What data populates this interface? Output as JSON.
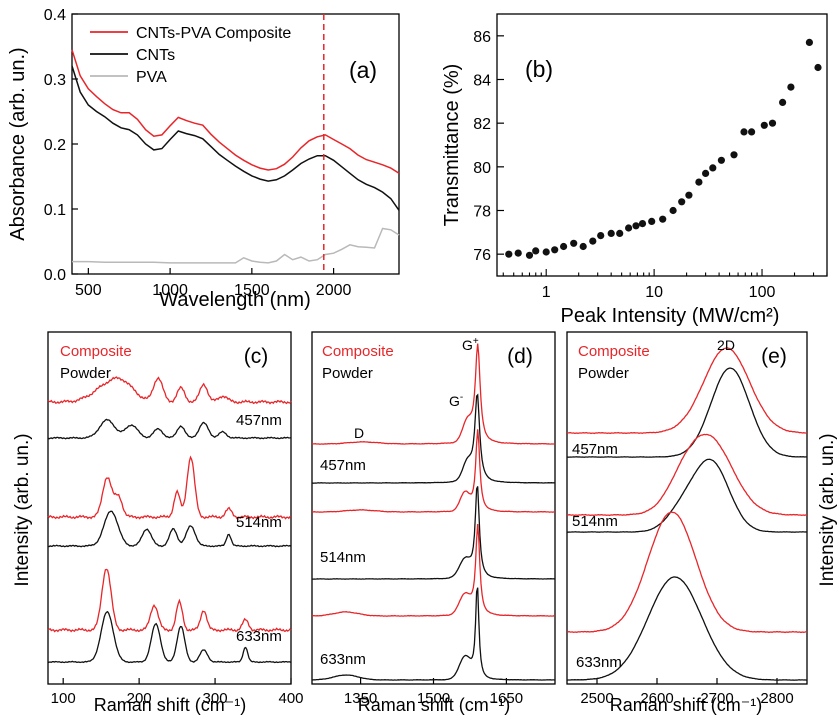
{
  "colors": {
    "composite": "#e8262a",
    "powder": "#111111",
    "pva": "#b9b9b9",
    "marker": "#111111"
  },
  "chart_data": [
    {
      "type": "line",
      "panel_label": "(a)",
      "xlabel": "Wavelength (nm)",
      "ylabel": "Absorbance (arb. un.)",
      "xlim": [
        400,
        2400
      ],
      "ylim": [
        0,
        0.4
      ],
      "x_ticks": [
        500,
        1000,
        1500,
        2000
      ],
      "y_ticks": [
        0.0,
        0.1,
        0.2,
        0.3,
        0.4
      ],
      "y_tick_labels": [
        "0.0",
        "0.1",
        "0.2",
        "0.3",
        "0.4"
      ],
      "legend_position": "top-left",
      "marker_line_x": 1940,
      "series": [
        {
          "name": "CNTs-PVA Composite",
          "color_key": "composite",
          "x": [
            400,
            450,
            500,
            550,
            600,
            650,
            700,
            750,
            800,
            850,
            900,
            950,
            1000,
            1050,
            1100,
            1150,
            1200,
            1250,
            1300,
            1350,
            1400,
            1450,
            1500,
            1550,
            1600,
            1650,
            1700,
            1750,
            1800,
            1850,
            1900,
            1950,
            2000,
            2050,
            2100,
            2150,
            2200,
            2250,
            2300,
            2350,
            2400
          ],
          "y": [
            0.345,
            0.305,
            0.285,
            0.273,
            0.262,
            0.253,
            0.248,
            0.248,
            0.238,
            0.222,
            0.212,
            0.214,
            0.228,
            0.241,
            0.236,
            0.232,
            0.229,
            0.215,
            0.203,
            0.193,
            0.183,
            0.175,
            0.168,
            0.163,
            0.16,
            0.162,
            0.169,
            0.18,
            0.194,
            0.205,
            0.211,
            0.214,
            0.207,
            0.2,
            0.193,
            0.183,
            0.176,
            0.172,
            0.168,
            0.163,
            0.155
          ]
        },
        {
          "name": "CNTs",
          "color_key": "powder",
          "x": [
            400,
            450,
            500,
            550,
            600,
            650,
            700,
            750,
            800,
            850,
            900,
            950,
            1000,
            1050,
            1100,
            1150,
            1200,
            1250,
            1300,
            1350,
            1400,
            1450,
            1500,
            1550,
            1600,
            1650,
            1700,
            1750,
            1800,
            1850,
            1900,
            1950,
            2000,
            2050,
            2100,
            2150,
            2200,
            2250,
            2300,
            2350,
            2400
          ],
          "y": [
            0.32,
            0.28,
            0.26,
            0.25,
            0.242,
            0.232,
            0.225,
            0.222,
            0.214,
            0.2,
            0.191,
            0.193,
            0.207,
            0.22,
            0.216,
            0.213,
            0.208,
            0.196,
            0.184,
            0.175,
            0.166,
            0.158,
            0.151,
            0.146,
            0.143,
            0.145,
            0.151,
            0.16,
            0.17,
            0.177,
            0.182,
            0.182,
            0.175,
            0.165,
            0.155,
            0.145,
            0.138,
            0.133,
            0.126,
            0.116,
            0.098
          ]
        },
        {
          "name": "PVA",
          "color_key": "pva",
          "x": [
            400,
            500,
            600,
            700,
            800,
            900,
            1000,
            1100,
            1200,
            1300,
            1400,
            1450,
            1500,
            1550,
            1600,
            1650,
            1700,
            1750,
            1800,
            1850,
            1900,
            1950,
            2000,
            2050,
            2100,
            2150,
            2200,
            2250,
            2300,
            2350,
            2400
          ],
          "y": [
            0.019,
            0.019,
            0.018,
            0.018,
            0.018,
            0.018,
            0.017,
            0.017,
            0.017,
            0.017,
            0.017,
            0.025,
            0.02,
            0.018,
            0.017,
            0.02,
            0.03,
            0.022,
            0.026,
            0.02,
            0.022,
            0.03,
            0.032,
            0.038,
            0.045,
            0.042,
            0.041,
            0.04,
            0.07,
            0.068,
            0.06
          ]
        }
      ]
    },
    {
      "type": "scatter",
      "panel_label": "(b)",
      "xlabel": "Peak Intensity (MW/cm²)",
      "ylabel": "Transmittance (%)",
      "x_scale": "log",
      "xlim": [
        0.35,
        400
      ],
      "ylim": [
        75,
        87
      ],
      "x_ticks": [
        1,
        10,
        100
      ],
      "y_ticks": [
        76,
        78,
        80,
        82,
        84,
        86
      ],
      "series": [
        {
          "name": "",
          "color_key": "marker",
          "x": [
            0.45,
            0.55,
            0.7,
            0.8,
            1.0,
            1.2,
            1.45,
            1.8,
            2.2,
            2.7,
            3.2,
            4.0,
            4.8,
            5.8,
            6.8,
            7.8,
            9.5,
            12,
            15,
            18,
            21,
            26,
            30,
            35,
            42,
            55,
            68,
            80,
            105,
            125,
            155,
            185,
            275,
            330
          ],
          "y": [
            76.0,
            76.05,
            75.95,
            76.15,
            76.1,
            76.2,
            76.35,
            76.5,
            76.35,
            76.6,
            76.85,
            76.95,
            76.95,
            77.2,
            77.3,
            77.4,
            77.5,
            77.6,
            78.0,
            78.4,
            78.7,
            79.3,
            79.7,
            79.95,
            80.3,
            80.55,
            81.6,
            81.6,
            81.9,
            82.0,
            82.95,
            83.65,
            85.7,
            84.55
          ]
        }
      ]
    },
    {
      "type": "line",
      "panel_label": "(c)",
      "xlabel": "Raman shift (cm⁻¹)",
      "ylabel": "Intensity (arb. un.)",
      "xlim": [
        80,
        400
      ],
      "x_ticks": [
        100,
        200,
        300,
        400
      ],
      "legend": [
        "Composite",
        "Powder"
      ],
      "laser_labels": [
        "457nm",
        "514nm",
        "633nm"
      ]
    },
    {
      "type": "line",
      "panel_label": "(d)",
      "xlabel": "Raman shift (cm⁻¹)",
      "xlim": [
        1250,
        1750
      ],
      "x_ticks": [
        1350,
        1500,
        1650
      ],
      "legend": [
        "Composite",
        "Powder"
      ],
      "laser_labels": [
        "457nm",
        "514nm",
        "633nm"
      ],
      "peak_labels": [
        "D",
        "G",
        "G"
      ]
    },
    {
      "type": "line",
      "panel_label": "(e)",
      "xlabel": "Raman shift (cm⁻¹)",
      "ylabel": "Intensity (arb. un.)",
      "xlim": [
        2450,
        2850
      ],
      "x_ticks": [
        2500,
        2600,
        2700,
        2800
      ],
      "legend": [
        "Composite",
        "Powder"
      ],
      "laser_labels": [
        "457nm",
        "514nm",
        "633nm"
      ],
      "peak_labels": [
        "2D"
      ]
    }
  ]
}
